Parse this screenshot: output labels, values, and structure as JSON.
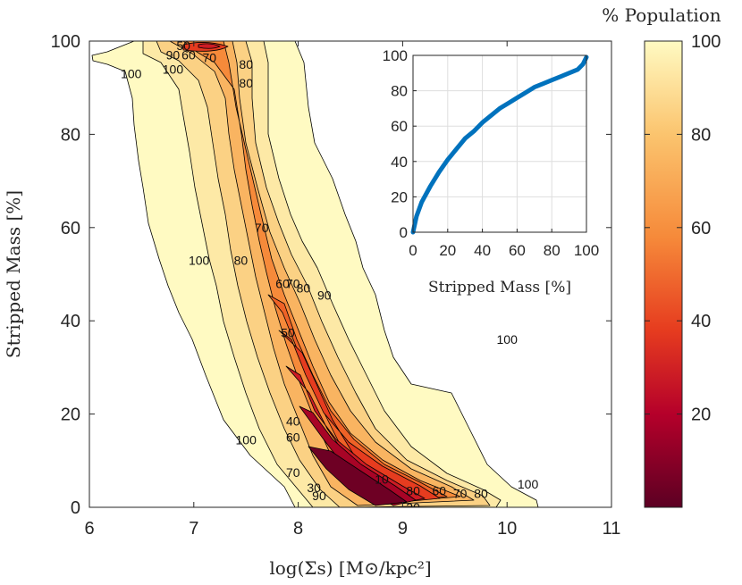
{
  "chart_data": [
    {
      "type": "heatmap",
      "subtype": "filled-contour",
      "xlabel": "log(Σs) [M⊙/kpc²]",
      "ylabel": "Stripped Mass [%]",
      "xlim": [
        6,
        11
      ],
      "ylim": [
        0,
        100
      ],
      "xticks": [
        "6",
        "7",
        "8",
        "9",
        "10",
        "11"
      ],
      "yticks": [
        "0",
        "20",
        "40",
        "60",
        "80",
        "100"
      ],
      "contour_levels": [
        10,
        20,
        30,
        40,
        50,
        60,
        70,
        80,
        90,
        100
      ],
      "contour_labels": [
        {
          "text": "100",
          "x": 6.8,
          "y": 94
        },
        {
          "text": "90",
          "x": 6.8,
          "y": 97
        },
        {
          "text": "60",
          "x": 6.95,
          "y": 97
        },
        {
          "text": "50",
          "x": 6.9,
          "y": 99
        },
        {
          "text": "70",
          "x": 7.15,
          "y": 96.5
        },
        {
          "text": "80",
          "x": 7.5,
          "y": 95
        },
        {
          "text": "80",
          "x": 7.5,
          "y": 91
        },
        {
          "text": "100",
          "x": 6.4,
          "y": 93
        },
        {
          "text": "100",
          "x": 9.55,
          "y": 77
        },
        {
          "text": "100",
          "x": 7.05,
          "y": 53
        },
        {
          "text": "70",
          "x": 7.65,
          "y": 60
        },
        {
          "text": "80",
          "x": 7.45,
          "y": 53
        },
        {
          "text": "60",
          "x": 7.85,
          "y": 48
        },
        {
          "text": "70",
          "x": 7.95,
          "y": 48
        },
        {
          "text": "80",
          "x": 8.05,
          "y": 47
        },
        {
          "text": "90",
          "x": 8.25,
          "y": 45.5
        },
        {
          "text": "50",
          "x": 7.9,
          "y": 37.5
        },
        {
          "text": "100",
          "x": 10.0,
          "y": 36
        },
        {
          "text": "100",
          "x": 7.5,
          "y": 14.5
        },
        {
          "text": "40",
          "x": 7.95,
          "y": 18.5
        },
        {
          "text": "60",
          "x": 7.95,
          "y": 15
        },
        {
          "text": "70",
          "x": 7.95,
          "y": 7.5
        },
        {
          "text": "30",
          "x": 8.15,
          "y": 4.2
        },
        {
          "text": "90",
          "x": 8.2,
          "y": 2.5
        },
        {
          "text": "10",
          "x": 8.8,
          "y": 6
        },
        {
          "text": "20",
          "x": 9.1,
          "y": 0
        },
        {
          "text": "80",
          "x": 9.1,
          "y": 3.5
        },
        {
          "text": "60",
          "x": 9.35,
          "y": 3.5
        },
        {
          "text": "70",
          "x": 9.55,
          "y": 3
        },
        {
          "text": "80",
          "x": 9.75,
          "y": 3
        },
        {
          "text": "100",
          "x": 10.2,
          "y": 5
        }
      ]
    },
    {
      "type": "line",
      "xlabel": "Stripped Mass [%]",
      "ylabel": "",
      "xlim": [
        0,
        100
      ],
      "ylim": [
        0,
        100
      ],
      "xticks": [
        "0",
        "20",
        "40",
        "60",
        "80",
        "100"
      ],
      "yticks": [
        "0",
        "20",
        "40",
        "60",
        "80",
        "100"
      ],
      "grid": true,
      "series": [
        {
          "color": "#0072bd",
          "x": [
            0,
            2,
            5,
            10,
            15,
            20,
            25,
            30,
            35,
            40,
            45,
            50,
            55,
            60,
            65,
            70,
            75,
            80,
            85,
            90,
            95,
            98,
            100
          ],
          "y": [
            0,
            9,
            17,
            26,
            34,
            41,
            47,
            53,
            57,
            62,
            66,
            70,
            73,
            76,
            79,
            82,
            84,
            86,
            88,
            90,
            92,
            95,
            99
          ]
        }
      ]
    }
  ],
  "colorbar": {
    "title": "% Population",
    "ticks": [
      "20",
      "40",
      "60",
      "80",
      "100"
    ],
    "range": [
      0,
      100
    ],
    "colormap": [
      "#5c0023",
      "#b5002a",
      "#e63c1f",
      "#f68a3a",
      "#fbc46e",
      "#fffac2"
    ]
  }
}
